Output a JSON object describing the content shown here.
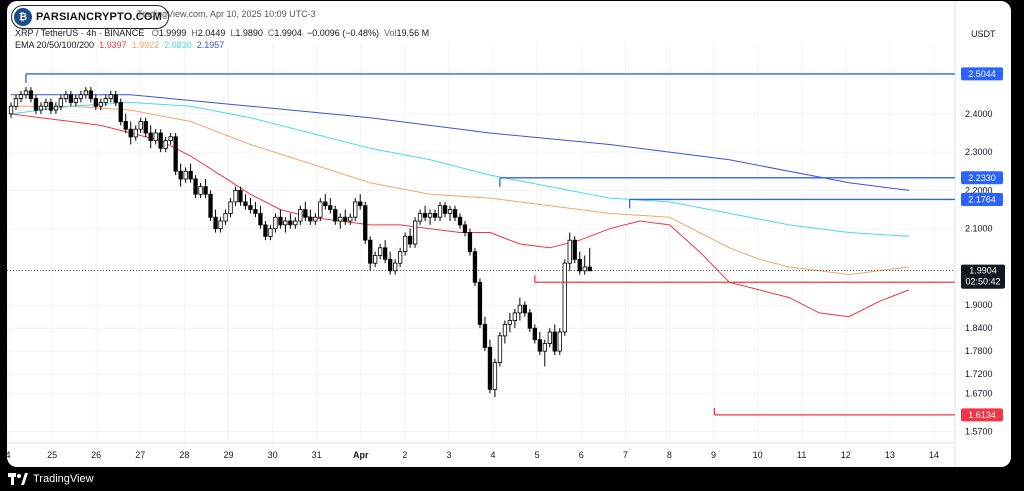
{
  "watermark": {
    "brand": "PARSIANCRYPTO.COM",
    "published": "TradingView.com, Apr 10, 2025 10:09 UTC-3"
  },
  "header": {
    "symbol": "XRP / TetherUS · 4h · BINANCE",
    "ohlc": [
      {
        "label": "O",
        "value": "1.9999"
      },
      {
        "label": "H",
        "value": "2.0449"
      },
      {
        "label": "L",
        "value": "1.9890"
      },
      {
        "label": "C",
        "value": "1.9904"
      }
    ],
    "change": "−0.0096 (−0.48%)",
    "volume_label": "Vol",
    "volume": "19.56 M",
    "ema_label": "EMA 20/50/100/200",
    "ema": [
      {
        "value": "1.9397",
        "color": "#f23645"
      },
      {
        "value": "1.9922",
        "color": "#f7a46b"
      },
      {
        "value": "2.0830",
        "color": "#4dd9e6"
      },
      {
        "value": "2.1957",
        "color": "#3f51d9"
      }
    ]
  },
  "footer": {
    "brand": "TradingView"
  },
  "chart_data": {
    "type": "candlestick",
    "unit": "USDT",
    "ylim": [
      1.54,
      2.58
    ],
    "x_ticks": [
      "4",
      "25",
      "26",
      "27",
      "28",
      "29",
      "30",
      "31",
      "Apr",
      "2",
      "3",
      "4",
      "5",
      "6",
      "7",
      "8",
      "9",
      "10",
      "11",
      "12",
      "13",
      "14"
    ],
    "y_ticks": [
      "2.4000",
      "2.3000",
      "2.2000",
      "2.1000",
      "1.9000",
      "1.8400",
      "1.7800",
      "1.7200",
      "1.6700",
      "1.5700"
    ],
    "current_price": "1.9904",
    "countdown": "02:50:42",
    "levels": [
      {
        "price": 2.5044,
        "label": "2.5044",
        "color": "#2962ff",
        "start_index": 3
      },
      {
        "price": 2.233,
        "label": "2.2330",
        "color": "#2962ff",
        "start_index": 98
      },
      {
        "price": 2.1764,
        "label": "2.1764",
        "color": "#2962ff",
        "start_index": 124
      },
      {
        "price": 1.96,
        "label": "1.9600",
        "color": "#f23645",
        "start_index": 105
      },
      {
        "price": 1.6134,
        "label": "1.6134",
        "color": "#f23645",
        "start_index": 141
      }
    ],
    "ema_series": [
      {
        "name": "EMA 20",
        "color": "#f23645",
        "points": [
          [
            0,
            2.4
          ],
          [
            6,
            2.39
          ],
          [
            12,
            2.38
          ],
          [
            18,
            2.37
          ],
          [
            24,
            2.35
          ],
          [
            30,
            2.33
          ],
          [
            36,
            2.29
          ],
          [
            42,
            2.24
          ],
          [
            48,
            2.19
          ],
          [
            54,
            2.15
          ],
          [
            60,
            2.13
          ],
          [
            66,
            2.12
          ],
          [
            72,
            2.11
          ],
          [
            78,
            2.11
          ],
          [
            84,
            2.1
          ],
          [
            90,
            2.09
          ],
          [
            96,
            2.09
          ],
          [
            102,
            2.06
          ],
          [
            108,
            2.05
          ],
          [
            114,
            2.07
          ],
          [
            120,
            2.1
          ],
          [
            126,
            2.12
          ],
          [
            132,
            2.11
          ],
          [
            138,
            2.04
          ],
          [
            144,
            1.96
          ],
          [
            150,
            1.94
          ],
          [
            156,
            1.92
          ],
          [
            162,
            1.88
          ],
          [
            168,
            1.87
          ],
          [
            174,
            1.91
          ],
          [
            180,
            1.94
          ]
        ]
      },
      {
        "name": "EMA 50",
        "color": "#f7a46b",
        "points": [
          [
            0,
            2.42
          ],
          [
            12,
            2.42
          ],
          [
            24,
            2.41
          ],
          [
            36,
            2.38
          ],
          [
            48,
            2.32
          ],
          [
            60,
            2.27
          ],
          [
            72,
            2.22
          ],
          [
            84,
            2.19
          ],
          [
            96,
            2.18
          ],
          [
            108,
            2.16
          ],
          [
            120,
            2.14
          ],
          [
            132,
            2.13
          ],
          [
            138,
            2.09
          ],
          [
            144,
            2.05
          ],
          [
            150,
            2.02
          ],
          [
            156,
            2.0
          ],
          [
            162,
            1.99
          ],
          [
            168,
            1.98
          ],
          [
            174,
            1.99
          ],
          [
            180,
            2.0
          ]
        ]
      },
      {
        "name": "EMA 100",
        "color": "#4dd9e6",
        "points": [
          [
            0,
            2.4
          ],
          [
            12,
            2.42
          ],
          [
            24,
            2.43
          ],
          [
            36,
            2.42
          ],
          [
            48,
            2.39
          ],
          [
            60,
            2.35
          ],
          [
            72,
            2.31
          ],
          [
            84,
            2.28
          ],
          [
            96,
            2.24
          ],
          [
            108,
            2.21
          ],
          [
            120,
            2.18
          ],
          [
            132,
            2.17
          ],
          [
            144,
            2.14
          ],
          [
            156,
            2.11
          ],
          [
            168,
            2.09
          ],
          [
            180,
            2.08
          ]
        ]
      },
      {
        "name": "EMA 200",
        "color": "#3f51d9",
        "points": [
          [
            0,
            2.45
          ],
          [
            24,
            2.45
          ],
          [
            48,
            2.42
          ],
          [
            72,
            2.39
          ],
          [
            96,
            2.35
          ],
          [
            120,
            2.32
          ],
          [
            144,
            2.28
          ],
          [
            168,
            2.22
          ],
          [
            180,
            2.2
          ]
        ]
      }
    ],
    "candles": [
      [
        2.4,
        2.43,
        2.39,
        2.42
      ],
      [
        2.42,
        2.45,
        2.41,
        2.44
      ],
      [
        2.44,
        2.46,
        2.43,
        2.45
      ],
      [
        2.45,
        2.47,
        2.44,
        2.46
      ],
      [
        2.46,
        2.47,
        2.43,
        2.44
      ],
      [
        2.44,
        2.45,
        2.4,
        2.41
      ],
      [
        2.41,
        2.43,
        2.4,
        2.42
      ],
      [
        2.42,
        2.44,
        2.41,
        2.43
      ],
      [
        2.43,
        2.44,
        2.4,
        2.41
      ],
      [
        2.41,
        2.43,
        2.4,
        2.42
      ],
      [
        2.42,
        2.45,
        2.41,
        2.44
      ],
      [
        2.44,
        2.46,
        2.43,
        2.45
      ],
      [
        2.45,
        2.46,
        2.42,
        2.43
      ],
      [
        2.43,
        2.45,
        2.42,
        2.44
      ],
      [
        2.44,
        2.46,
        2.43,
        2.45
      ],
      [
        2.45,
        2.47,
        2.44,
        2.46
      ],
      [
        2.46,
        2.47,
        2.43,
        2.44
      ],
      [
        2.44,
        2.45,
        2.41,
        2.42
      ],
      [
        2.42,
        2.44,
        2.41,
        2.43
      ],
      [
        2.43,
        2.45,
        2.42,
        2.44
      ],
      [
        2.44,
        2.46,
        2.43,
        2.45
      ],
      [
        2.45,
        2.46,
        2.42,
        2.43
      ],
      [
        2.43,
        2.44,
        2.37,
        2.38
      ],
      [
        2.38,
        2.4,
        2.35,
        2.36
      ],
      [
        2.36,
        2.38,
        2.32,
        2.34
      ],
      [
        2.34,
        2.37,
        2.33,
        2.36
      ],
      [
        2.36,
        2.39,
        2.35,
        2.38
      ],
      [
        2.38,
        2.39,
        2.34,
        2.35
      ],
      [
        2.35,
        2.37,
        2.31,
        2.33
      ],
      [
        2.33,
        2.36,
        2.32,
        2.35
      ],
      [
        2.35,
        2.36,
        2.3,
        2.31
      ],
      [
        2.31,
        2.34,
        2.3,
        2.33
      ],
      [
        2.33,
        2.35,
        2.32,
        2.34
      ],
      [
        2.34,
        2.35,
        2.24,
        2.25
      ],
      [
        2.25,
        2.27,
        2.21,
        2.23
      ],
      [
        2.23,
        2.26,
        2.22,
        2.25
      ],
      [
        2.25,
        2.27,
        2.22,
        2.23
      ],
      [
        2.23,
        2.24,
        2.18,
        2.19
      ],
      [
        2.19,
        2.22,
        2.18,
        2.21
      ],
      [
        2.21,
        2.23,
        2.18,
        2.19
      ],
      [
        2.19,
        2.2,
        2.12,
        2.13
      ],
      [
        2.13,
        2.15,
        2.09,
        2.1
      ],
      [
        2.1,
        2.13,
        2.09,
        2.12
      ],
      [
        2.12,
        2.15,
        2.11,
        2.14
      ],
      [
        2.14,
        2.18,
        2.13,
        2.17
      ],
      [
        2.17,
        2.21,
        2.16,
        2.2
      ],
      [
        2.2,
        2.21,
        2.16,
        2.17
      ],
      [
        2.17,
        2.19,
        2.15,
        2.16
      ],
      [
        2.16,
        2.18,
        2.14,
        2.15
      ],
      [
        2.15,
        2.17,
        2.13,
        2.14
      ],
      [
        2.14,
        2.16,
        2.1,
        2.11
      ],
      [
        2.11,
        2.12,
        2.07,
        2.08
      ],
      [
        2.08,
        2.11,
        2.07,
        2.1
      ],
      [
        2.1,
        2.14,
        2.09,
        2.13
      ],
      [
        2.13,
        2.15,
        2.1,
        2.11
      ],
      [
        2.11,
        2.13,
        2.09,
        2.12
      ],
      [
        2.12,
        2.14,
        2.1,
        2.11
      ],
      [
        2.11,
        2.13,
        2.1,
        2.12
      ],
      [
        2.12,
        2.16,
        2.11,
        2.15
      ],
      [
        2.15,
        2.17,
        2.12,
        2.13
      ],
      [
        2.13,
        2.15,
        2.11,
        2.12
      ],
      [
        2.12,
        2.14,
        2.11,
        2.13
      ],
      [
        2.13,
        2.18,
        2.12,
        2.17
      ],
      [
        2.17,
        2.19,
        2.15,
        2.16
      ],
      [
        2.16,
        2.18,
        2.14,
        2.15
      ],
      [
        2.15,
        2.16,
        2.11,
        2.12
      ],
      [
        2.12,
        2.14,
        2.1,
        2.13
      ],
      [
        2.13,
        2.15,
        2.11,
        2.12
      ],
      [
        2.12,
        2.14,
        2.11,
        2.13
      ],
      [
        2.13,
        2.18,
        2.12,
        2.17
      ],
      [
        2.17,
        2.19,
        2.15,
        2.16
      ],
      [
        2.16,
        2.17,
        2.06,
        2.07
      ],
      [
        2.07,
        2.08,
        1.99,
        2.01
      ],
      [
        2.01,
        2.04,
        2.0,
        2.03
      ],
      [
        2.03,
        2.06,
        2.02,
        2.05
      ],
      [
        2.05,
        2.07,
        2.01,
        2.02
      ],
      [
        2.02,
        2.04,
        1.98,
        1.99
      ],
      [
        1.99,
        2.02,
        1.98,
        2.01
      ],
      [
        2.01,
        2.05,
        2.0,
        2.04
      ],
      [
        2.04,
        2.09,
        2.03,
        2.08
      ],
      [
        2.08,
        2.1,
        2.05,
        2.06
      ],
      [
        2.06,
        2.13,
        2.05,
        2.12
      ],
      [
        2.12,
        2.15,
        2.11,
        2.14
      ],
      [
        2.14,
        2.16,
        2.12,
        2.13
      ],
      [
        2.13,
        2.15,
        2.11,
        2.14
      ],
      [
        2.14,
        2.15,
        2.12,
        2.13
      ],
      [
        2.13,
        2.17,
        2.12,
        2.16
      ],
      [
        2.16,
        2.17,
        2.13,
        2.14
      ],
      [
        2.14,
        2.16,
        2.12,
        2.15
      ],
      [
        2.15,
        2.16,
        2.12,
        2.13
      ],
      [
        2.13,
        2.14,
        2.1,
        2.11
      ],
      [
        2.11,
        2.12,
        2.08,
        2.09
      ],
      [
        2.09,
        2.1,
        2.03,
        2.04
      ],
      [
        2.04,
        2.05,
        1.95,
        1.96
      ],
      [
        1.96,
        1.97,
        1.84,
        1.85
      ],
      [
        1.85,
        1.87,
        1.78,
        1.79
      ],
      [
        1.79,
        1.81,
        1.67,
        1.68
      ],
      [
        1.68,
        1.76,
        1.66,
        1.75
      ],
      [
        1.75,
        1.83,
        1.74,
        1.82
      ],
      [
        1.82,
        1.86,
        1.8,
        1.85
      ],
      [
        1.85,
        1.88,
        1.83,
        1.86
      ],
      [
        1.86,
        1.89,
        1.84,
        1.88
      ],
      [
        1.88,
        1.92,
        1.86,
        1.9
      ],
      [
        1.9,
        1.91,
        1.87,
        1.88
      ],
      [
        1.88,
        1.89,
        1.83,
        1.84
      ],
      [
        1.84,
        1.85,
        1.8,
        1.81
      ],
      [
        1.81,
        1.83,
        1.77,
        1.78
      ],
      [
        1.78,
        1.81,
        1.74,
        1.8
      ],
      [
        1.8,
        1.84,
        1.79,
        1.83
      ],
      [
        1.83,
        1.85,
        1.77,
        1.78
      ],
      [
        1.78,
        1.84,
        1.77,
        1.83
      ],
      [
        1.83,
        2.02,
        1.82,
        2.01
      ],
      [
        2.01,
        2.09,
        1.99,
        2.07
      ],
      [
        2.07,
        2.08,
        2.01,
        2.02
      ],
      [
        2.02,
        2.04,
        1.98,
        1.99
      ],
      [
        1.99,
        2.03,
        1.98,
        2.0
      ],
      [
        2.0,
        2.05,
        1.99,
        1.99
      ]
    ]
  }
}
